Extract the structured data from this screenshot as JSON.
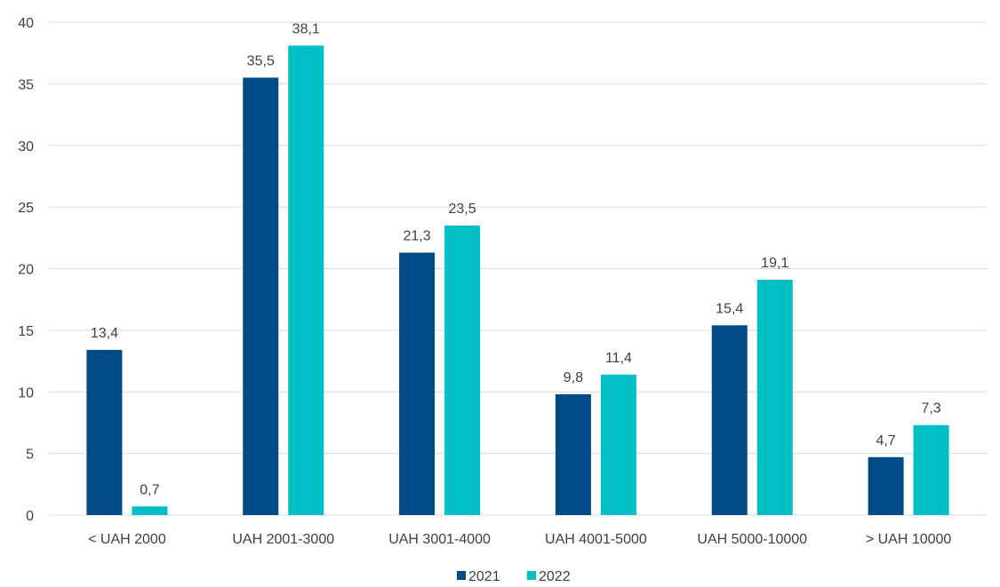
{
  "chart_data": {
    "type": "bar",
    "categories": [
      "< UAH 2000",
      "UAH 2001-3000",
      "UAH 3001-4000",
      "UAH 4001-5000",
      "UAH 5000-10000",
      "> UAH 10000"
    ],
    "series": [
      {
        "name": "2021",
        "color": "#004b87",
        "values": [
          13.4,
          35.5,
          21.3,
          9.8,
          15.4,
          4.7
        ],
        "labels": [
          "13,4",
          "35,5",
          "21,3",
          "9,8",
          "15,4",
          "4,7"
        ]
      },
      {
        "name": "2022",
        "color": "#00bfc4",
        "values": [
          0.7,
          38.1,
          23.5,
          11.4,
          19.1,
          7.3
        ],
        "labels": [
          "0,7",
          "38,1",
          "23,5",
          "11,4",
          "19,1",
          "7,3"
        ]
      }
    ],
    "yticks": [
      "0",
      "5",
      "10",
      "15",
      "20",
      "25",
      "30",
      "35",
      "40"
    ],
    "ylim": [
      0,
      40
    ],
    "grid": true,
    "legend": "bottom-center",
    "title": "",
    "xlabel": "",
    "ylabel": ""
  }
}
